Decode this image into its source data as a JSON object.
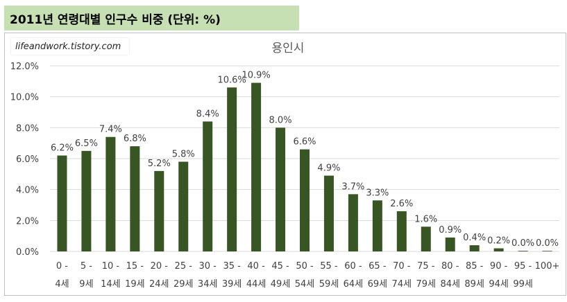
{
  "header": {
    "title": "2011년 연령대별 인구수 비중 (단위: %)"
  },
  "watermark": {
    "text": "lifeandwork.tistory.com"
  },
  "chart_data": {
    "type": "bar",
    "title": "용인시",
    "categories": [
      [
        "0 -",
        "4세"
      ],
      [
        "5 -",
        "9세"
      ],
      [
        "10 -",
        "14세"
      ],
      [
        "15 -",
        "19세"
      ],
      [
        "20 -",
        "24세"
      ],
      [
        "25 -",
        "29세"
      ],
      [
        "30 -",
        "34세"
      ],
      [
        "35 -",
        "39세"
      ],
      [
        "40 -",
        "44세"
      ],
      [
        "45 -",
        "49세"
      ],
      [
        "50 -",
        "54세"
      ],
      [
        "55 -",
        "59세"
      ],
      [
        "60 -",
        "64세"
      ],
      [
        "65 -",
        "69세"
      ],
      [
        "70 -",
        "74세"
      ],
      [
        "75 -",
        "79세"
      ],
      [
        "80 -",
        "84세"
      ],
      [
        "85 -",
        "89세"
      ],
      [
        "90 -",
        "94세"
      ],
      [
        "95 -",
        "99세"
      ],
      [
        "100+",
        ""
      ]
    ],
    "values": [
      6.2,
      6.5,
      7.4,
      6.8,
      5.2,
      5.8,
      8.4,
      10.6,
      10.9,
      8.0,
      6.6,
      4.9,
      3.7,
      3.3,
      2.6,
      1.6,
      0.9,
      0.4,
      0.2,
      0.04,
      0.02
    ],
    "data_labels": [
      "6.2%",
      "6.5%",
      "7.4%",
      "6.8%",
      "5.2%",
      "5.8%",
      "8.4%",
      "10.6%",
      "10.9%",
      "8.0%",
      "6.6%",
      "4.9%",
      "3.7%",
      "3.3%",
      "2.6%",
      "1.6%",
      "0.9%",
      "0.4%",
      "0.2%",
      "0.0%",
      "0.0%"
    ],
    "yticks": [
      "0.0%",
      "2.0%",
      "4.0%",
      "6.0%",
      "8.0%",
      "10.0%",
      "12.0%"
    ],
    "ylim": [
      0,
      12
    ],
    "grid": true,
    "bar_color": "#375623"
  }
}
